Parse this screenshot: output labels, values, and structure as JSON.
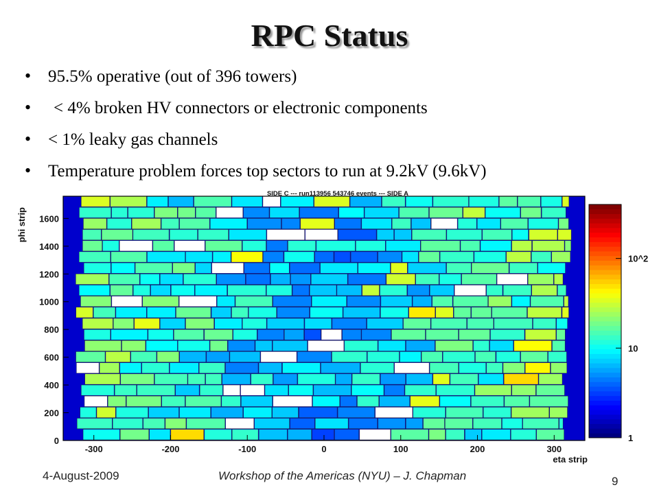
{
  "slide": {
    "title": "RPC Status",
    "bullets": [
      {
        "marker": "•",
        "text": "95.5% operative (out of 396 towers)"
      },
      {
        "marker": "•",
        "text": "< 4% broken HV connectors or electronic components"
      },
      {
        "marker": "•",
        "text": "< 1% leaky gas channels"
      },
      {
        "marker": "•",
        "text": "Temperature problem forces top sectors to run at 9.2kV (9.6kV)"
      }
    ]
  },
  "footer": {
    "date": "4-August-2009",
    "center": "Workshop of the Americas (NYU) – J. Chapman",
    "page": "9"
  },
  "colors": {
    "low": "#0033cc",
    "mid": "#00aaff",
    "high": "#ff0000",
    "inactive": "#ffffff",
    "plot_background": "#0000cc"
  },
  "chart_data": {
    "type": "heatmap",
    "title": "SIDE C ---   run113956 543746 events  ---  SIDE A",
    "xlabel": "eta strip",
    "ylabel": "phi strip",
    "xlim": [
      -340,
      340
    ],
    "ylim": [
      0,
      1760
    ],
    "x_ticks": [
      -300,
      -200,
      -100,
      0,
      100,
      200,
      300
    ],
    "x_tick_labels": [
      "-300",
      "-200",
      "-100",
      "0",
      "100",
      "200",
      "300"
    ],
    "y_ticks": [
      0,
      200,
      400,
      600,
      800,
      1000,
      1200,
      1400,
      1600
    ],
    "y_tick_labels": [
      "0",
      "200",
      "400",
      "600",
      "800",
      "1000",
      "1200",
      "1400",
      "1600"
    ],
    "color_scale": "log",
    "z_range": [
      1,
      400
    ],
    "colorbar_ticks": [
      1,
      10,
      100
    ],
    "colorbar_tick_labels": [
      "1",
      "10",
      "10^2"
    ]
  }
}
